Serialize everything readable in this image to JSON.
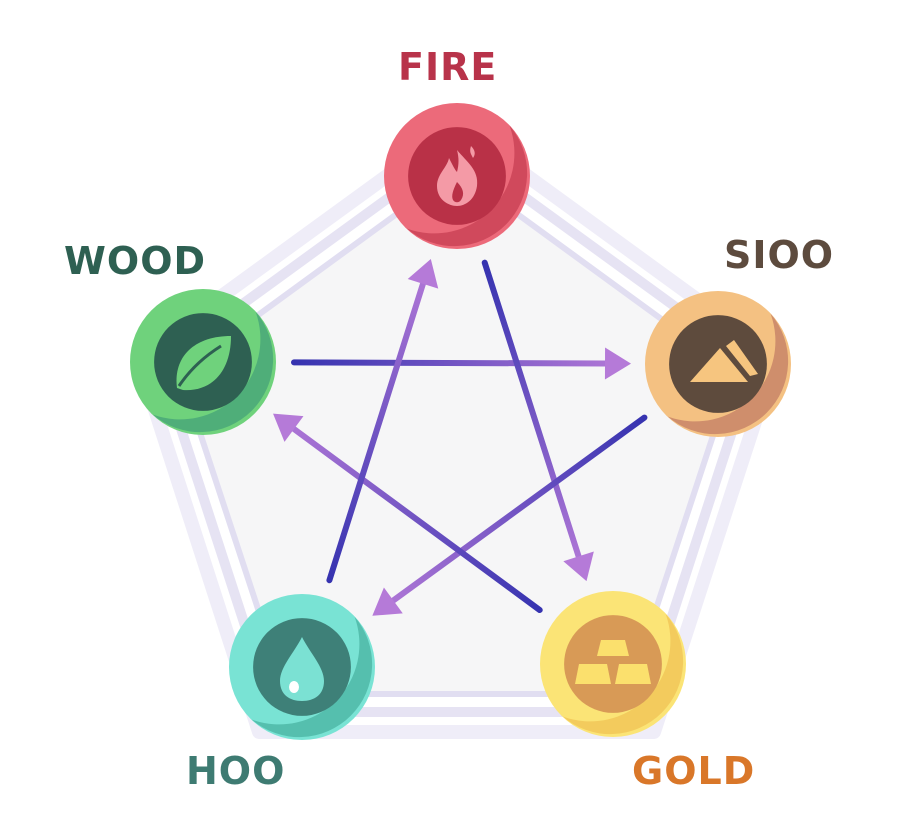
{
  "elements": {
    "fire": {
      "label": "FIRE",
      "label_color": "#b8334a",
      "ring": "#ec6a7a",
      "ring_dark": "#d0495c",
      "core": "#b93147",
      "icon": "flame-icon"
    },
    "sioo": {
      "label": "SIOO",
      "label_color": "#5d4b3e",
      "ring": "#f4c182",
      "ring_dark": "#cf8e6c",
      "core": "#5e4b3d",
      "icon": "mountain-icon"
    },
    "gold": {
      "label": "GOLD",
      "label_color": "#d97729",
      "ring": "#fbe476",
      "ring_dark": "#f3cb5d",
      "core": "#d89a56",
      "icon": "gold-bars-icon"
    },
    "hoo": {
      "label": "HOO",
      "label_color": "#3e7b72",
      "ring": "#79e3d4",
      "ring_dark": "#55bfae",
      "core": "#3e8078",
      "icon": "water-drop-icon"
    },
    "wood": {
      "label": "WOOD",
      "label_color": "#2e6052",
      "ring": "#6fd27c",
      "ring_dark": "#4fae79",
      "core": "#2e6052",
      "icon": "leaf-icon"
    }
  },
  "arrows": [
    {
      "from": "wood",
      "to": "sioo"
    },
    {
      "from": "fire",
      "to": "gold"
    },
    {
      "from": "sioo",
      "to": "hoo"
    },
    {
      "from": "gold",
      "to": "wood"
    },
    {
      "from": "hoo",
      "to": "fire"
    }
  ],
  "colors": {
    "arrow_blue": "#3633b0",
    "arrow_violet": "#b57ad8",
    "pentagon_fill": "#f6f6f7",
    "pentagon_stroke": "#e4e2f3"
  }
}
